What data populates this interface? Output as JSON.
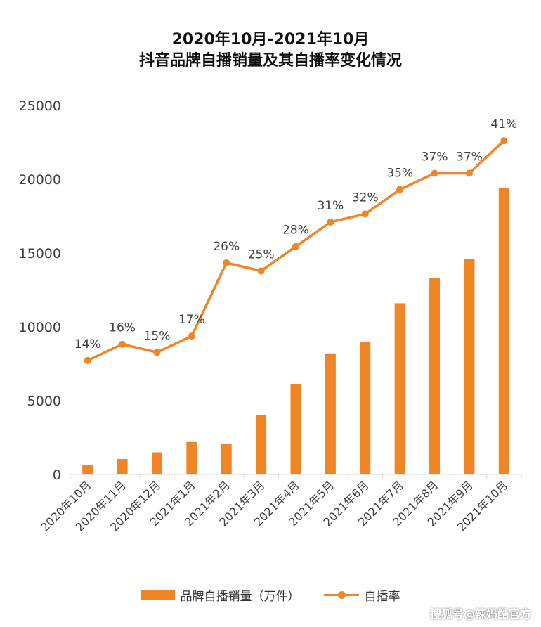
{
  "colors": {
    "accent": "#F08526",
    "axis": "#D9D9D9",
    "text": "#404040"
  },
  "chart_data": {
    "type": "bar",
    "title_line1": "2020年10月-2021年10月",
    "title_line2": "抖音品牌自播销量及其自播率变化情况",
    "categories": [
      "2020年10月",
      "2020年11月",
      "2020年12月",
      "2021年1月",
      "2021年2月",
      "2021年3月",
      "2021年4月",
      "2021年5月",
      "2021年6月",
      "2021年7月",
      "2021年8月",
      "2021年9月",
      "2021年10月"
    ],
    "ylim": [
      0,
      25000
    ],
    "yticks": [
      "0",
      "5000",
      "10000",
      "15000",
      "20000",
      "25000"
    ],
    "grid": false,
    "legend_position": "bottom",
    "series": [
      {
        "name": "品牌自播销量（万件）",
        "type": "bar",
        "values": [
          650,
          1050,
          1500,
          2200,
          2050,
          4050,
          6100,
          8200,
          9000,
          11600,
          13300,
          14600,
          19400
        ]
      },
      {
        "name": "自播率",
        "type": "line",
        "values": [
          14,
          16,
          15,
          17,
          26,
          25,
          28,
          31,
          32,
          35,
          37,
          37,
          41
        ],
        "labels": [
          "14%",
          "16%",
          "15%",
          "17%",
          "26%",
          "25%",
          "28%",
          "31%",
          "32%",
          "35%",
          "37%",
          "37%",
          "41%"
        ]
      }
    ]
  },
  "watermark": "搜狐号@辣妈酷官方"
}
